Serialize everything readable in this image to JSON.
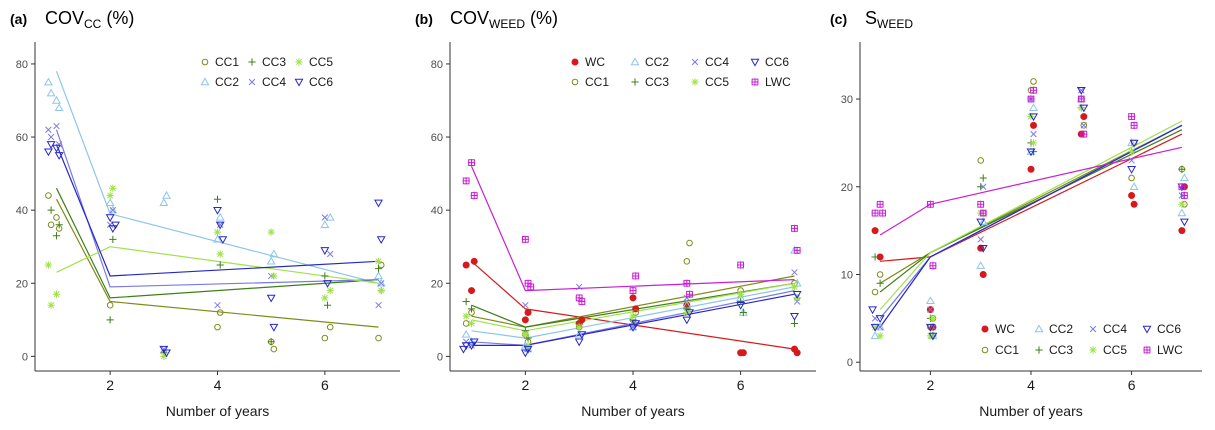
{
  "colors": {
    "WC": "#d7191c",
    "CC1": "#7f8c1a",
    "CC2": "#8cc6ea",
    "CC3": "#3f7f1a",
    "CC4": "#7a7ae6",
    "CC5": "#9fe24a",
    "CC6": "#2727c8",
    "LWC": "#c91ed6"
  },
  "chart_data": [
    {
      "id": "a",
      "type": "scatter",
      "panel_letter": "(a)",
      "title_main": "COV",
      "title_sub": "CC",
      "title_suffix": " (%)",
      "xlabel": "Number of years",
      "xlim": [
        0.6,
        7.4
      ],
      "ylim": [
        -4,
        86
      ],
      "xticks": [
        2,
        4,
        6
      ],
      "yticks": [
        0,
        20,
        40,
        60,
        80
      ],
      "legend_position": "top-right",
      "legend_rows": [
        [
          "CC1",
          "CC3",
          "CC5"
        ],
        [
          "CC2",
          "CC4",
          "CC6"
        ]
      ],
      "series": [
        {
          "name": "CC1",
          "x": [
            0.85,
            0.9,
            1.0,
            1.05,
            2.0,
            4.0,
            4.05,
            5.0,
            5.05,
            6.0,
            6.1,
            7.0,
            7.05
          ],
          "y": [
            44,
            36,
            38,
            35,
            14,
            8,
            12,
            4,
            2,
            5,
            8,
            5,
            25
          ],
          "line": [
            [
              1,
              43
            ],
            [
              2,
              15
            ],
            [
              7,
              8
            ]
          ]
        },
        {
          "name": "CC2",
          "x": [
            0.85,
            0.9,
            1.0,
            1.05,
            2.0,
            2.05,
            3.0,
            3.05,
            4.0,
            4.05,
            5.0,
            5.05,
            6.0,
            6.1,
            7.0,
            7.05
          ],
          "y": [
            75,
            72,
            70,
            68,
            42,
            40,
            42,
            44,
            32,
            38,
            26,
            28,
            36,
            38,
            22,
            20
          ],
          "line": [
            [
              1,
              78
            ],
            [
              2,
              39
            ],
            [
              7,
              20
            ]
          ]
        },
        {
          "name": "CC3",
          "x": [
            0.9,
            1.0,
            1.05,
            2.0,
            2.05,
            3.0,
            4.0,
            4.05,
            5.0,
            6.0,
            6.05,
            7.0,
            7.05
          ],
          "y": [
            40,
            33,
            36,
            10,
            32,
            1,
            43,
            25,
            4,
            22,
            14,
            24,
            18
          ],
          "line": [
            [
              1,
              46
            ],
            [
              2,
              16
            ],
            [
              7,
              21
            ]
          ]
        },
        {
          "name": "CC4",
          "x": [
            0.85,
            0.9,
            1.0,
            1.05,
            2.0,
            2.05,
            3.0,
            4.0,
            4.05,
            5.0,
            6.0,
            6.1,
            7.0,
            7.05
          ],
          "y": [
            62,
            60,
            63,
            58,
            36,
            40,
            2,
            14,
            36,
            22,
            38,
            28,
            14,
            20
          ],
          "line": [
            [
              1,
              62
            ],
            [
              2,
              19
            ],
            [
              7,
              21
            ]
          ]
        },
        {
          "name": "CC5",
          "x": [
            0.85,
            0.9,
            1.0,
            2.0,
            2.05,
            3.0,
            4.0,
            4.05,
            5.0,
            5.05,
            6.0,
            6.1,
            7.0,
            7.05
          ],
          "y": [
            25,
            14,
            17,
            44,
            46,
            0,
            34,
            28,
            34,
            22,
            16,
            18,
            26,
            18
          ],
          "line": [
            [
              1,
              23
            ],
            [
              2,
              30
            ],
            [
              7,
              20
            ]
          ]
        },
        {
          "name": "CC6",
          "x": [
            0.85,
            0.9,
            1.0,
            1.05,
            2.0,
            2.05,
            2.1,
            3.0,
            3.05,
            4.0,
            4.05,
            4.1,
            5.0,
            5.05,
            6.0,
            6.05,
            7.0,
            7.05
          ],
          "y": [
            56,
            58,
            57,
            55,
            38,
            35,
            36,
            2,
            1,
            40,
            36,
            32,
            16,
            8,
            29,
            20,
            42,
            32
          ],
          "line": [
            [
              1,
              58
            ],
            [
              2,
              22
            ],
            [
              7,
              26
            ]
          ]
        }
      ]
    },
    {
      "id": "b",
      "type": "scatter",
      "panel_letter": "(b)",
      "title_main": "COV",
      "title_sub": "WEED",
      "title_suffix": " (%)",
      "xlabel": "Number of years",
      "xlim": [
        0.6,
        7.4
      ],
      "ylim": [
        -4,
        86
      ],
      "xticks": [
        2,
        4,
        6
      ],
      "yticks": [
        0,
        20,
        40,
        60,
        80
      ],
      "legend_position": "top-right",
      "legend_rows": [
        [
          "WC",
          "CC2",
          "CC4",
          "CC6"
        ],
        [
          "CC1",
          "CC3",
          "CC5",
          "LWC"
        ]
      ],
      "series": [
        {
          "name": "WC",
          "x": [
            0.9,
            1.0,
            1.05,
            2.0,
            2.05,
            3.0,
            3.05,
            4.0,
            4.05,
            5.0,
            6.0,
            6.05,
            7.0,
            7.05
          ],
          "y": [
            25,
            18,
            26,
            10,
            12,
            9,
            10,
            16,
            13,
            14,
            1,
            1,
            2,
            1
          ],
          "line": [
            [
              1,
              26
            ],
            [
              2,
              13
            ],
            [
              7,
              2
            ]
          ]
        },
        {
          "name": "CC1",
          "x": [
            0.9,
            1.0,
            2.0,
            2.05,
            3.0,
            4.0,
            4.05,
            5.0,
            5.05,
            6.0,
            7.0
          ],
          "y": [
            9,
            12,
            6,
            4,
            8,
            10,
            12,
            26,
            31,
            18,
            20
          ],
          "line": [
            [
              1,
              11
            ],
            [
              2,
              8
            ],
            [
              7,
              22
            ]
          ]
        },
        {
          "name": "CC2",
          "x": [
            0.9,
            1.0,
            2.0,
            2.05,
            3.0,
            4.0,
            5.0,
            6.0,
            6.05,
            7.0,
            7.05
          ],
          "y": [
            6,
            4,
            3,
            2,
            6,
            8,
            14,
            16,
            12,
            29,
            20
          ],
          "line": [
            [
              1,
              7
            ],
            [
              2,
              5
            ],
            [
              7,
              19
            ]
          ]
        },
        {
          "name": "CC3",
          "x": [
            0.9,
            1.0,
            2.0,
            2.05,
            3.0,
            4.0,
            5.0,
            6.0,
            6.05,
            7.0,
            7.05
          ],
          "y": [
            15,
            13,
            7,
            5,
            9,
            10,
            13,
            15,
            12,
            9,
            16
          ],
          "line": [
            [
              1,
              14
            ],
            [
              2,
              8
            ],
            [
              7,
              20
            ]
          ]
        },
        {
          "name": "CC4",
          "x": [
            0.9,
            1.0,
            2.0,
            2.05,
            3.0,
            4.0,
            5.0,
            6.0,
            7.0,
            7.05
          ],
          "y": [
            4,
            3,
            14,
            2,
            19,
            8,
            16,
            17,
            23,
            15
          ],
          "line": [
            [
              1,
              4
            ],
            [
              2,
              3
            ],
            [
              7,
              18
            ]
          ]
        },
        {
          "name": "CC5",
          "x": [
            0.9,
            1.0,
            2.0,
            2.05,
            3.0,
            4.0,
            5.0,
            6.0,
            7.0,
            7.05
          ],
          "y": [
            11,
            9,
            6,
            3,
            8,
            11,
            12,
            17,
            19,
            16
          ],
          "line": [
            [
              1,
              10
            ],
            [
              2,
              7
            ],
            [
              7,
              20
            ]
          ]
        },
        {
          "name": "CC6",
          "x": [
            0.85,
            0.9,
            1.0,
            1.05,
            2.0,
            2.05,
            3.0,
            3.05,
            4.0,
            4.05,
            5.0,
            5.05,
            6.0,
            7.0,
            7.05
          ],
          "y": [
            2,
            3,
            3,
            4,
            1,
            2,
            4,
            6,
            8,
            9,
            10,
            12,
            14,
            11,
            17
          ],
          "line": [
            [
              1,
              3
            ],
            [
              2,
              3
            ],
            [
              7,
              17
            ]
          ]
        },
        {
          "name": "LWC",
          "x": [
            0.9,
            1.0,
            1.05,
            2.0,
            2.05,
            2.1,
            3.0,
            3.05,
            4.0,
            4.05,
            5.0,
            5.05,
            6.0,
            7.0,
            7.05
          ],
          "y": [
            48,
            53,
            44,
            32,
            20,
            19,
            16,
            15,
            18,
            22,
            20,
            17,
            25,
            35,
            29
          ],
          "line": [
            [
              1,
              52
            ],
            [
              2,
              18
            ],
            [
              7,
              21
            ]
          ]
        }
      ]
    },
    {
      "id": "c",
      "type": "scatter",
      "panel_letter": "(c)",
      "title_main": "S",
      "title_sub": "WEED",
      "title_suffix": "",
      "xlabel": "Number of years",
      "xlim": [
        0.6,
        7.4
      ],
      "ylim": [
        -1,
        36.5
      ],
      "xticks": [
        2,
        4,
        6
      ],
      "yticks": [
        0,
        10,
        20,
        30
      ],
      "legend_position": "bottom-right",
      "legend_rows": [
        [
          "WC",
          "CC2",
          "CC4",
          "CC6"
        ],
        [
          "CC1",
          "CC3",
          "CC5",
          "LWC"
        ]
      ],
      "series": [
        {
          "name": "WC",
          "x": [
            0.9,
            1.0,
            2.0,
            2.05,
            3.0,
            3.05,
            4.0,
            4.05,
            5.0,
            5.05,
            6.0,
            6.05,
            7.0,
            7.05
          ],
          "y": [
            15,
            12,
            6,
            4,
            13,
            10,
            22,
            27,
            26,
            28,
            19,
            18,
            15,
            20
          ],
          "line": [
            [
              1,
              11.5
            ],
            [
              2,
              12
            ],
            [
              7,
              26
            ]
          ]
        },
        {
          "name": "CC1",
          "x": [
            0.9,
            1.0,
            2.0,
            2.05,
            3.0,
            3.05,
            4.0,
            4.05,
            5.0,
            5.05,
            6.0,
            6.05,
            7.0,
            7.05
          ],
          "y": [
            8,
            10,
            4,
            5,
            23,
            17,
            31,
            32,
            30,
            27,
            21,
            25,
            22,
            18
          ],
          "line": [
            [
              1,
              9
            ],
            [
              2,
              12.5
            ],
            [
              7,
              27
            ]
          ]
        },
        {
          "name": "CC2",
          "x": [
            0.9,
            1.0,
            2.0,
            2.05,
            3.0,
            3.05,
            4.0,
            4.05,
            5.0,
            6.0,
            6.05,
            7.0,
            7.05
          ],
          "y": [
            3,
            4,
            7,
            3,
            11,
            16,
            24,
            29,
            30,
            25,
            20,
            17,
            21
          ],
          "line": [
            [
              1,
              5
            ],
            [
              2,
              12
            ],
            [
              7,
              27
            ]
          ]
        },
        {
          "name": "CC3",
          "x": [
            0.9,
            1.0,
            2.0,
            2.05,
            3.0,
            3.05,
            4.0,
            4.05,
            5.0,
            6.0,
            7.0
          ],
          "y": [
            12,
            9,
            5,
            3,
            20,
            21,
            25,
            24,
            29,
            24,
            22
          ],
          "line": [
            [
              1,
              8
            ],
            [
              2,
              12.5
            ],
            [
              7,
              26.5
            ]
          ]
        },
        {
          "name": "CC4",
          "x": [
            0.9,
            1.0,
            2.0,
            2.05,
            3.0,
            3.05,
            4.0,
            4.05,
            5.0,
            5.05,
            6.0,
            7.0
          ],
          "y": [
            5,
            4,
            6,
            4,
            14,
            20,
            30,
            26,
            31,
            27,
            23,
            19
          ],
          "line": [
            [
              1,
              5
            ],
            [
              2,
              12
            ],
            [
              7,
              27
            ]
          ]
        },
        {
          "name": "CC5",
          "x": [
            0.9,
            1.0,
            2.0,
            2.05,
            3.0,
            4.0,
            4.05,
            5.0,
            6.0,
            7.0
          ],
          "y": [
            4,
            3,
            3,
            5,
            17,
            28,
            25,
            29,
            24,
            18
          ],
          "line": [
            [
              1,
              6
            ],
            [
              2,
              12.5
            ],
            [
              7,
              27.5
            ]
          ]
        },
        {
          "name": "CC6",
          "x": [
            0.85,
            0.9,
            1.0,
            2.0,
            2.05,
            3.0,
            3.05,
            4.0,
            4.05,
            5.0,
            5.05,
            6.0,
            6.05,
            7.0,
            7.05
          ],
          "y": [
            6,
            4,
            5,
            4,
            3,
            16,
            13,
            24,
            28,
            31,
            29,
            22,
            25,
            20,
            16
          ],
          "line": [
            [
              1,
              4
            ],
            [
              2,
              12
            ],
            [
              7,
              27
            ]
          ]
        },
        {
          "name": "LWC",
          "x": [
            0.9,
            1.0,
            1.05,
            2.0,
            2.05,
            3.0,
            3.05,
            4.0,
            4.05,
            5.0,
            5.05,
            6.0,
            6.05,
            7.0,
            7.05
          ],
          "y": [
            17,
            18,
            17,
            18,
            11,
            18,
            17,
            30,
            31,
            30,
            26,
            28,
            27,
            20,
            19
          ],
          "line": [
            [
              1,
              14.5
            ],
            [
              2,
              18
            ],
            [
              7,
              24.5
            ]
          ]
        }
      ]
    }
  ]
}
